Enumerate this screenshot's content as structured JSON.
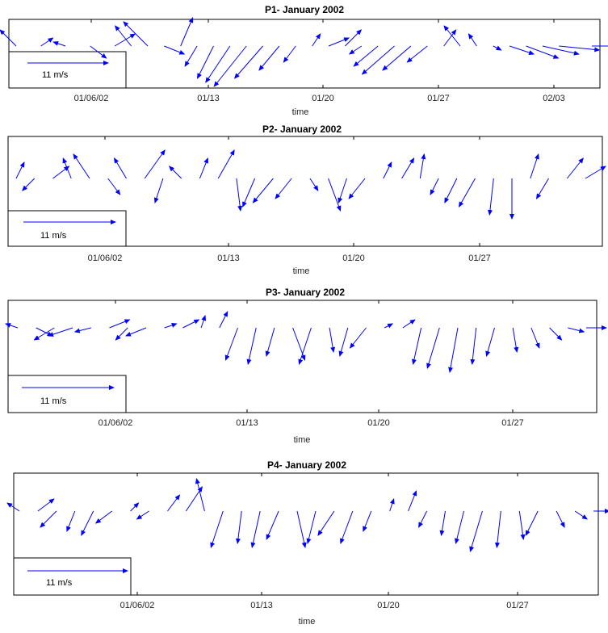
{
  "arrow_color": "#0000ff",
  "chart_data": [
    {
      "type": "quiver",
      "title": "P1- January 2002",
      "xlabel": "time",
      "x_ticks": [
        "01/06/02",
        "01/13",
        "01/20",
        "01/27",
        "02/03"
      ],
      "scale_label": "11 m/s",
      "scale_speed": 11,
      "x_range": [
        0,
        35
      ],
      "series": [
        {
          "dates": [
            0,
            1.5,
            3,
            4.5,
            6,
            7,
            8,
            9,
            10,
            11,
            12,
            13,
            14,
            15,
            16,
            17,
            18,
            19,
            20,
            21,
            22,
            23,
            24,
            25,
            26,
            27,
            28,
            29,
            30,
            31,
            32,
            33,
            35
          ]
        }
      ],
      "u": [
        -4,
        3,
        -3,
        4,
        5,
        -4,
        -6,
        5,
        3,
        -3,
        -4,
        -6,
        -8,
        -7,
        -5,
        -3,
        2,
        5,
        4,
        -3,
        -6,
        -8,
        -7,
        -5,
        3,
        -4,
        -2,
        2,
        6,
        8,
        9,
        10,
        8
      ],
      "v": [
        4,
        2,
        1,
        -3,
        3,
        5,
        6,
        -2,
        7,
        -5,
        -8,
        -9,
        -10,
        -8,
        -6,
        -4,
        3,
        2,
        4,
        -2,
        -5,
        -7,
        -6,
        -4,
        4,
        5,
        3,
        -1,
        -2,
        -3,
        -2,
        -1,
        0
      ]
    },
    {
      "type": "quiver",
      "title": "P2- January 2002",
      "xlabel": "time",
      "x_ticks": [
        "01/06/02",
        "01/13",
        "01/20",
        "01/27"
      ],
      "scale_label": "11 m/s",
      "scale_speed": 11,
      "x_range": [
        0,
        31
      ],
      "series": [
        {
          "dates": [
            0,
            1,
            2,
            3,
            4,
            5,
            6,
            7,
            8,
            9,
            10,
            11,
            12,
            13,
            14,
            15,
            16,
            17,
            18,
            19,
            20,
            21,
            22,
            23,
            24,
            25,
            26,
            27,
            28,
            29,
            30,
            31
          ]
        }
      ],
      "u": [
        2,
        -3,
        4,
        -2,
        -4,
        3,
        -3,
        5,
        -2,
        -3,
        2,
        4,
        1,
        -3,
        -5,
        -4,
        2,
        3,
        -2,
        -4,
        2,
        3,
        1,
        -2,
        -3,
        -4,
        -1,
        0,
        2,
        -3,
        4,
        5
      ],
      "v": [
        4,
        -3,
        3,
        5,
        6,
        -4,
        5,
        7,
        -6,
        3,
        5,
        7,
        -8,
        -7,
        -6,
        -5,
        -3,
        -8,
        -6,
        -5,
        4,
        5,
        6,
        -4,
        -6,
        -7,
        -9,
        -10,
        6,
        -5,
        5,
        3
      ]
    },
    {
      "type": "quiver",
      "title": "P3- January 2002",
      "xlabel": "time",
      "x_ticks": [
        "01/06/02",
        "01/13",
        "01/20",
        "01/27"
      ],
      "scale_label": "11 m/s",
      "scale_speed": 11,
      "x_range": [
        0,
        31
      ],
      "series": [
        {
          "dates": [
            0,
            1,
            2,
            3,
            4,
            5,
            6,
            7,
            8,
            9,
            10,
            11,
            12,
            13,
            14,
            15,
            16,
            17,
            18,
            19,
            20,
            21,
            22,
            23,
            24,
            25,
            26,
            27,
            28,
            29,
            30,
            31
          ]
        }
      ],
      "u": [
        -3,
        4,
        -5,
        -6,
        -4,
        5,
        -3,
        -5,
        3,
        4,
        1,
        2,
        -3,
        -2,
        -2,
        3,
        -3,
        1,
        -2,
        -4,
        2,
        3,
        -2,
        -3,
        -2,
        -1,
        -2,
        1,
        2,
        3,
        4,
        5
      ],
      "v": [
        1,
        -2,
        -3,
        -2,
        -1,
        2,
        -3,
        -2,
        1,
        2,
        3,
        4,
        -8,
        -9,
        -7,
        -8,
        -9,
        -6,
        -7,
        -5,
        1,
        2,
        -9,
        -10,
        -11,
        -9,
        -7,
        -6,
        -5,
        -3,
        -1,
        0
      ]
    },
    {
      "type": "quiver",
      "title": "P4- January 2002",
      "xlabel": "time",
      "x_ticks": [
        "01/06/02",
        "01/13",
        "01/20",
        "01/27"
      ],
      "scale_label": "11 m/s",
      "scale_speed": 11,
      "x_range": [
        0,
        31
      ],
      "series": [
        {
          "dates": [
            0,
            1,
            2,
            3,
            4,
            5,
            6,
            7,
            8,
            9,
            10,
            11,
            12,
            13,
            14,
            15,
            16,
            17,
            18,
            19,
            20,
            21,
            22,
            23,
            24,
            25,
            26,
            27,
            28,
            29,
            30,
            31
          ]
        }
      ],
      "u": [
        -3,
        4,
        -4,
        -2,
        -3,
        -4,
        2,
        -3,
        3,
        4,
        -2,
        -3,
        -1,
        -2,
        -3,
        2,
        -2,
        -4,
        -3,
        -2,
        1,
        2,
        -2,
        -1,
        -2,
        -3,
        -1,
        1,
        -3,
        2,
        3,
        4
      ],
      "v": [
        2,
        3,
        -4,
        -5,
        -6,
        -3,
        2,
        -2,
        4,
        6,
        8,
        -9,
        -8,
        -9,
        -7,
        -9,
        -8,
        -6,
        -8,
        -5,
        3,
        5,
        -4,
        -6,
        -8,
        -10,
        -9,
        -7,
        -6,
        -4,
        -2,
        0
      ]
    }
  ]
}
